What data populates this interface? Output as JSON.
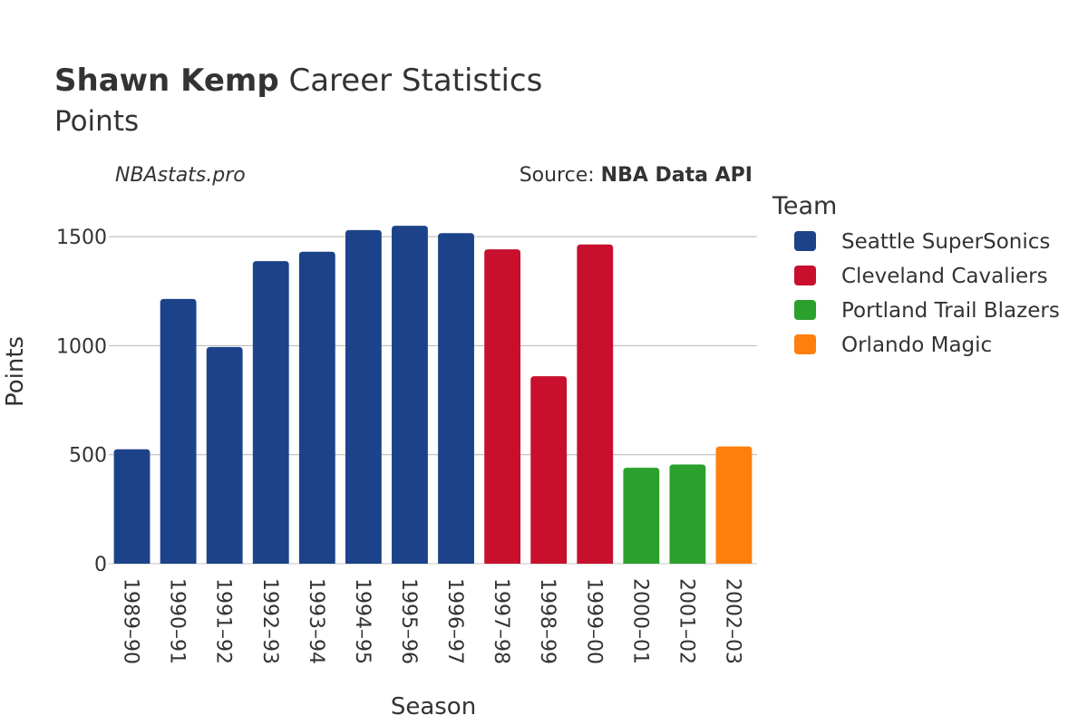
{
  "title": {
    "player": "Shawn Kemp",
    "rest": " Career Statistics"
  },
  "subtitle": "Points",
  "watermark": "NBAstats.pro",
  "source": {
    "prefix": "Source: ",
    "name": "NBA Data API"
  },
  "chart_data": {
    "type": "bar",
    "xlabel": "Season",
    "ylabel": "Points",
    "ylim": [
      0,
      1700
    ],
    "yticks": [
      0,
      500,
      1000,
      1500
    ],
    "grid": true,
    "legend_title": "Team",
    "legend_position": "right",
    "teams": [
      {
        "name": "Seattle SuperSonics",
        "color": "#1c4389"
      },
      {
        "name": "Cleveland Cavaliers",
        "color": "#c8102e"
      },
      {
        "name": "Portland Trail Blazers",
        "color": "#2ca02c"
      },
      {
        "name": "Orlando Magic",
        "color": "#ff7f0e"
      }
    ],
    "categories": [
      "1989–90",
      "1990–91",
      "1991–92",
      "1992–93",
      "1993–94",
      "1994–95",
      "1995–96",
      "1996–97",
      "1997–98",
      "1998–99",
      "1999–00",
      "2000–01",
      "2001–02",
      "2002–03"
    ],
    "values": [
      525,
      1214,
      994,
      1388,
      1431,
      1530,
      1550,
      1516,
      1442,
      860,
      1464,
      440,
      455,
      538
    ],
    "team_index": [
      0,
      0,
      0,
      0,
      0,
      0,
      0,
      0,
      1,
      1,
      1,
      2,
      2,
      3
    ]
  }
}
